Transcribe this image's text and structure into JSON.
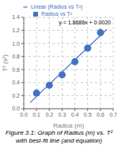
{
  "chart_data": {
    "type": "scatter",
    "title": "Figure 3.1: Graph of Radius (m) vs. T² with best-fit line (and equation)",
    "x_label": "Radius (m)",
    "y_label": "T² (s²)",
    "xlim": [
      0,
      0.7
    ],
    "xticks": [
      {
        "value": 0,
        "label": "0.0"
      },
      0.1,
      0.2,
      0.3,
      0.4,
      0.5,
      0.6,
      0.7
    ],
    "ylim": [
      0,
      1.4
    ],
    "yticks": [
      {
        "value": 0,
        "label": "0.0"
      },
      0.2,
      0.4,
      0.6,
      0.8,
      {
        "value": 1,
        "label": "1.0"
      },
      1.2,
      1.4
    ],
    "grid": true,
    "legend": "top",
    "series": [
      {
        "name": "Radius vs T²",
        "type": "scatter",
        "color": "#4472c4",
        "marker": "circle",
        "x": [
          0.1,
          0.2,
          0.3,
          0.4,
          0.5,
          0.6
        ],
        "values": [
          0.24,
          0.36,
          0.52,
          0.72,
          0.93,
          1.166
        ]
      },
      {
        "name": "Linear (Radius vs T²)",
        "type": "line",
        "color": "#4472c4",
        "line_style": "solid",
        "x": [
          0.05,
          0.65
        ],
        "values": [
          0.0954286,
          1.2165714
        ]
      }
    ],
    "annotations": [
      {
        "text": "y = 1.8686x + 0.0020"
      }
    ]
  }
}
